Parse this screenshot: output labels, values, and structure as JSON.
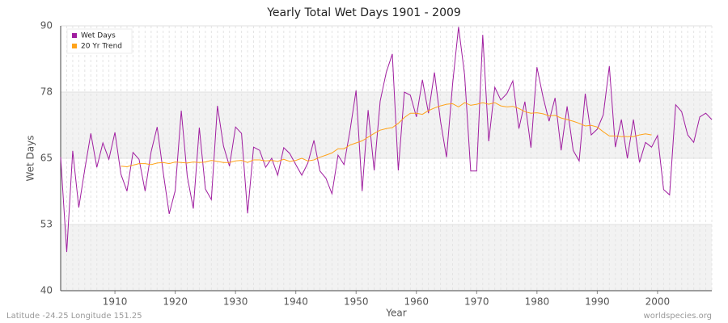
{
  "chart_data": {
    "type": "line",
    "title": "Yearly Total Wet Days 1901 - 2009",
    "x_label": "Year",
    "y_label": "Wet Days",
    "footer_left": "Latitude -24.25 Longitude 151.25",
    "footer_right": "worldspecies.org",
    "legend": "top-left",
    "grid": true,
    "xlim": [
      1901,
      2009
    ],
    "xticks": [
      1910,
      1920,
      1930,
      1940,
      1950,
      1960,
      1970,
      1980,
      1990,
      2000
    ],
    "ylim": [
      40,
      90
    ],
    "yticks": [
      40,
      {
        "value": 52.5,
        "label": "53"
      },
      65,
      {
        "value": 77.5,
        "label": "78"
      },
      90
    ],
    "x": [
      1901,
      1902,
      1903,
      1904,
      1905,
      1906,
      1907,
      1908,
      1909,
      1910,
      1911,
      1912,
      1913,
      1914,
      1915,
      1916,
      1917,
      1918,
      1919,
      1920,
      1921,
      1922,
      1923,
      1924,
      1925,
      1926,
      1927,
      1928,
      1929,
      1930,
      1931,
      1932,
      1933,
      1934,
      1935,
      1936,
      1937,
      1938,
      1939,
      1940,
      1941,
      1942,
      1943,
      1944,
      1945,
      1946,
      1947,
      1948,
      1949,
      1950,
      1951,
      1952,
      1953,
      1954,
      1955,
      1956,
      1957,
      1958,
      1959,
      1960,
      1961,
      1962,
      1963,
      1964,
      1965,
      1966,
      1967,
      1968,
      1969,
      1970,
      1971,
      1972,
      1973,
      1974,
      1975,
      1976,
      1977,
      1978,
      1979,
      1980,
      1981,
      1982,
      1983,
      1984,
      1985,
      1986,
      1987,
      1988,
      1989,
      1990,
      1991,
      1992,
      1993,
      1994,
      1995,
      1996,
      1997,
      1998,
      1999,
      2000,
      2001,
      2002,
      2003,
      2004,
      2005,
      2006,
      2007,
      2008,
      2009
    ],
    "series": [
      {
        "name": "Wet Days",
        "color": "#a01ea0",
        "values": [
          65.2,
          47.3,
          66.4,
          55.7,
          62.9,
          69.7,
          63.3,
          67.9,
          64.8,
          69.9,
          62.0,
          58.8,
          66.1,
          64.8,
          58.8,
          66.2,
          70.9,
          62.4,
          54.5,
          58.9,
          74.0,
          61.6,
          55.5,
          70.8,
          59.2,
          57.2,
          74.9,
          67.3,
          63.5,
          70.9,
          69.7,
          54.6,
          67.1,
          66.5,
          63.3,
          65.0,
          61.8,
          67.0,
          65.9,
          63.8,
          61.8,
          64.1,
          68.4,
          62.6,
          61.2,
          58.3,
          65.6,
          63.8,
          70.3,
          77.8,
          58.8,
          74.1,
          62.7,
          75.8,
          81.2,
          84.7,
          62.7,
          77.5,
          76.9,
          72.8,
          79.8,
          73.5,
          81.2,
          72.0,
          65.2,
          79.0,
          89.8,
          80.7,
          62.6,
          62.6,
          88.3,
          68.2,
          78.4,
          76.0,
          77.2,
          79.6,
          70.6,
          75.7,
          67.0,
          82.2,
          76.6,
          72.0,
          76.4,
          66.5,
          74.8,
          66.5,
          64.5,
          77.2,
          69.4,
          70.5,
          73.2,
          82.4,
          67.1,
          72.3,
          65.0,
          72.3,
          64.2,
          68.0,
          67.1,
          69.3,
          59.1,
          58.1,
          75.1,
          73.8,
          69.4,
          68.0,
          72.8,
          73.5,
          72.3
        ]
      },
      {
        "name": "20 Yr Trend",
        "color": "#ffa31a",
        "values": [
          null,
          null,
          null,
          null,
          null,
          null,
          null,
          null,
          null,
          null,
          63.5,
          63.4,
          63.7,
          64.0,
          64.0,
          63.8,
          64.1,
          64.2,
          64.0,
          64.3,
          64.2,
          64.1,
          64.3,
          64.2,
          64.3,
          64.6,
          64.4,
          64.2,
          64.2,
          64.5,
          64.6,
          64.2,
          64.7,
          64.7,
          64.5,
          64.6,
          64.4,
          64.8,
          64.4,
          64.6,
          65.0,
          64.5,
          64.7,
          65.2,
          65.6,
          66.0,
          66.8,
          66.8,
          67.5,
          67.9,
          68.3,
          69.0,
          69.7,
          70.3,
          70.6,
          70.8,
          71.6,
          72.7,
          73.5,
          73.5,
          73.3,
          74.0,
          74.5,
          74.9,
          75.2,
          75.3,
          74.7,
          75.5,
          75.0,
          75.2,
          75.5,
          75.2,
          75.5,
          74.9,
          74.7,
          74.8,
          74.4,
          73.8,
          73.5,
          73.6,
          73.4,
          73.0,
          73.1,
          72.6,
          72.3,
          72.0,
          71.6,
          71.1,
          71.2,
          70.9,
          70.0,
          69.2,
          69.2,
          69.1,
          69.1,
          69.1,
          69.4,
          69.6,
          69.4,
          null,
          null,
          null,
          null,
          null,
          null,
          null,
          null,
          null,
          null
        ]
      }
    ]
  }
}
